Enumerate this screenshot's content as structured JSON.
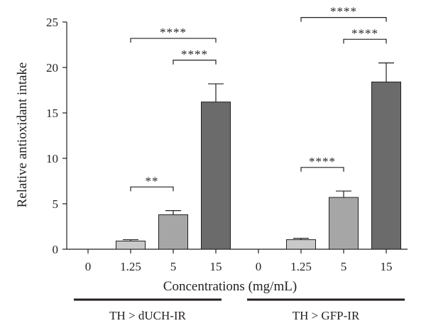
{
  "chart_data": {
    "type": "bar",
    "ylabel": "Relative antioxidant intake",
    "xlabel": "Concentrations (mg/mL)",
    "ylim": [
      0,
      25
    ],
    "yticks": [
      "0",
      "5",
      "10",
      "15",
      "20",
      "25"
    ],
    "groups": [
      {
        "label": "TH > dUCH-IR",
        "categories": [
          "0",
          "1.25",
          "5",
          "15"
        ],
        "values": [
          0,
          0.9,
          3.8,
          16.2
        ],
        "errors": [
          0,
          0.15,
          0.45,
          2.0
        ],
        "significance": [
          {
            "from": 1,
            "to": 2,
            "label": "**"
          },
          {
            "from": 2,
            "to": 3,
            "label": "****"
          },
          {
            "from": 1,
            "to": 3,
            "label": "****"
          }
        ]
      },
      {
        "label": "TH > GFP-IR",
        "categories": [
          "0",
          "1.25",
          "5",
          "15"
        ],
        "values": [
          0,
          1.05,
          5.7,
          18.4
        ],
        "errors": [
          0,
          0.15,
          0.7,
          2.1
        ],
        "significance": [
          {
            "from": 1,
            "to": 2,
            "label": "****"
          },
          {
            "from": 2,
            "to": 3,
            "label": "****"
          },
          {
            "from": 1,
            "to": 3,
            "label": "****"
          }
        ]
      }
    ],
    "colors": {
      "0": "#ffffff",
      "1.25": "#c9c9c9",
      "5": "#a6a6a6",
      "15": "#6b6b6b",
      "stroke": "#231f20"
    }
  }
}
